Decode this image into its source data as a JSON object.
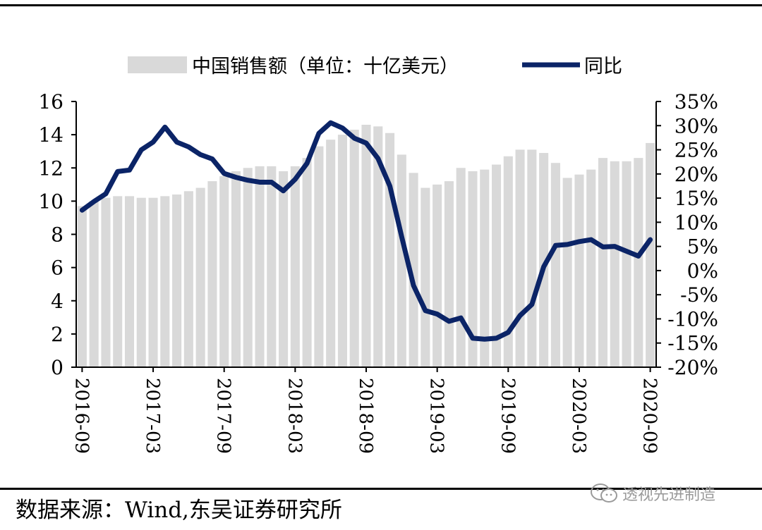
{
  "chart_data": {
    "type": "bar",
    "legend": {
      "position": "top",
      "bar_label": "中国销售额（单位：十亿美元）",
      "line_label": "同比"
    },
    "x": [
      "2016-09",
      "2016-10",
      "2016-11",
      "2016-12",
      "2017-01",
      "2017-02",
      "2017-03",
      "2017-04",
      "2017-05",
      "2017-06",
      "2017-07",
      "2017-08",
      "2017-09",
      "2017-10",
      "2017-11",
      "2017-12",
      "2018-01",
      "2018-02",
      "2018-03",
      "2018-04",
      "2018-05",
      "2018-06",
      "2018-07",
      "2018-08",
      "2018-09",
      "2018-10",
      "2018-11",
      "2018-12",
      "2019-01",
      "2019-02",
      "2019-03",
      "2019-04",
      "2019-05",
      "2019-06",
      "2019-07",
      "2019-08",
      "2019-09",
      "2019-10",
      "2019-11",
      "2019-12",
      "2020-01",
      "2020-02",
      "2020-03",
      "2020-04",
      "2020-05",
      "2020-06",
      "2020-07",
      "2020-08",
      "2020-09"
    ],
    "x_tick_labels": [
      "2016-09",
      "2017-03",
      "2017-09",
      "2018-03",
      "2018-09",
      "2019-03",
      "2019-09",
      "2020-03",
      "2020-09"
    ],
    "series": [
      {
        "name": "中国销售额（单位：十亿美元）",
        "type": "bar",
        "axis": "left",
        "color": "#d9d9d9",
        "values": [
          9.7,
          10.0,
          10.2,
          10.3,
          10.3,
          10.2,
          10.2,
          10.3,
          10.4,
          10.6,
          10.8,
          11.2,
          11.5,
          11.8,
          12.0,
          12.1,
          12.1,
          11.8,
          12.1,
          12.6,
          13.3,
          13.7,
          14.0,
          14.3,
          14.6,
          14.5,
          14.1,
          12.8,
          11.7,
          10.8,
          11.0,
          11.2,
          12.0,
          11.8,
          11.9,
          12.2,
          12.7,
          13.1,
          13.1,
          12.9,
          12.3,
          11.4,
          11.6,
          11.9,
          12.6,
          12.4,
          12.4,
          12.6,
          13.5
        ]
      },
      {
        "name": "同比",
        "type": "line",
        "axis": "right",
        "color": "#0b2467",
        "values": [
          12.5,
          14.3,
          15.9,
          20.5,
          20.8,
          25.0,
          26.6,
          29.7,
          26.6,
          25.6,
          24.0,
          23.1,
          20.1,
          19.3,
          18.7,
          18.3,
          18.3,
          16.5,
          18.9,
          22.2,
          28.4,
          30.6,
          29.5,
          27.4,
          26.4,
          23.2,
          17.5,
          7.0,
          -3.1,
          -8.3,
          -9.0,
          -10.5,
          -9.8,
          -14.0,
          -14.2,
          -14.0,
          -12.8,
          -9.3,
          -7.0,
          0.8,
          5.2,
          5.4,
          6.0,
          6.4,
          4.9,
          5.0,
          4.0,
          3.0,
          6.4
        ]
      }
    ],
    "y_left": {
      "min": 0,
      "max": 16,
      "ticks": [
        "0",
        "2",
        "4",
        "6",
        "8",
        "10",
        "12",
        "14",
        "16"
      ]
    },
    "y_right": {
      "min": -20,
      "max": 35,
      "ticks": [
        "-20%",
        "-15%",
        "-10%",
        "-5%",
        "0%",
        "5%",
        "10%",
        "15%",
        "20%",
        "25%",
        "30%",
        "35%"
      ]
    },
    "grid": false
  },
  "source_text": "数据来源：Wind,东吴证券研究所",
  "watermark_text": "透视先进制造"
}
